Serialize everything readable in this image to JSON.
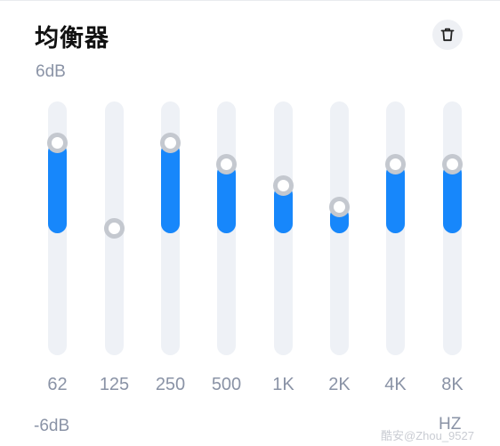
{
  "header": {
    "title": "均衡器",
    "delete_icon": "trash-icon"
  },
  "scale": {
    "max_label": "6dB",
    "min_label": "-6dB",
    "unit_label": "HZ",
    "max_db": 6,
    "min_db": -6
  },
  "bands": [
    {
      "label": "62",
      "gain_db": 4
    },
    {
      "label": "125",
      "gain_db": 0
    },
    {
      "label": "250",
      "gain_db": 4
    },
    {
      "label": "500",
      "gain_db": 3
    },
    {
      "label": "1K",
      "gain_db": 2
    },
    {
      "label": "2K",
      "gain_db": 1
    },
    {
      "label": "4K",
      "gain_db": 3
    },
    {
      "label": "8K",
      "gain_db": 3
    }
  ],
  "colors": {
    "accent": "#1787fb",
    "track": "#eef1f6",
    "knob_ring": "#c4c8cf",
    "muted_text": "#8a93a6"
  },
  "watermark": "酷安@Zhou_9527"
}
